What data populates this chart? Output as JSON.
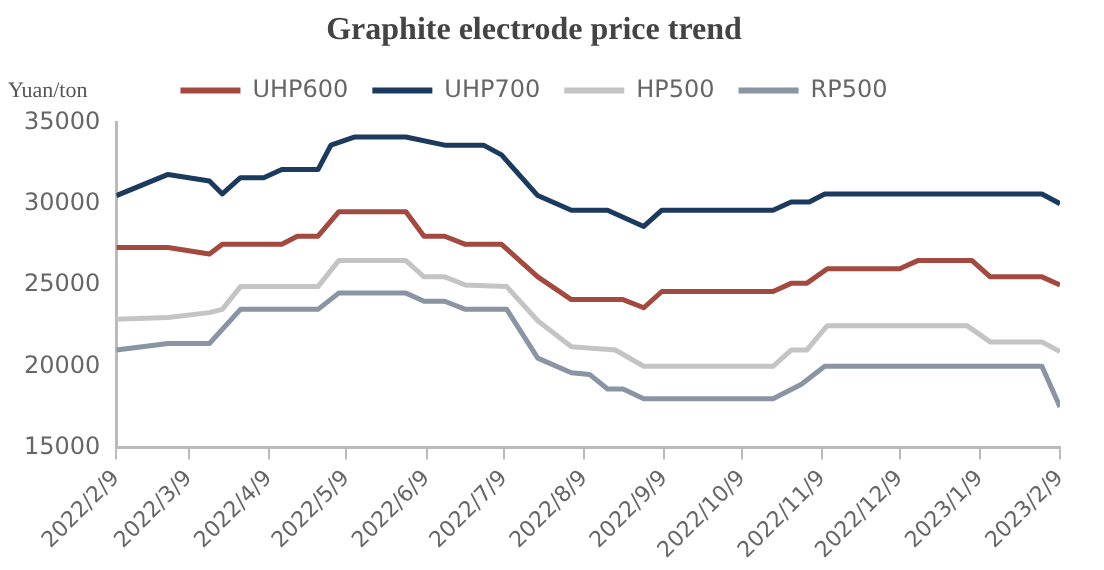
{
  "chart_data": {
    "type": "line",
    "title": "Graphite electrode price trend",
    "ylabel": "Yuan/ton",
    "legend": "top",
    "grid": false,
    "marker": "none",
    "xlim": [
      "2022-02-09",
      "2023-02-09"
    ],
    "xticks": [
      {
        "value": "2022-02-09",
        "label": "2022/2/9"
      },
      {
        "value": "2022-03-09",
        "label": "2022/3/9"
      },
      {
        "value": "2022-04-09",
        "label": "2022/4/9"
      },
      {
        "value": "2022-05-09",
        "label": "2022/5/9"
      },
      {
        "value": "2022-06-09",
        "label": "2022/6/9"
      },
      {
        "value": "2022-07-09",
        "label": "2022/7/9"
      },
      {
        "value": "2022-08-09",
        "label": "2022/8/9"
      },
      {
        "value": "2022-09-09",
        "label": "2022/9/9"
      },
      {
        "value": "2022-10-09",
        "label": "2022/10/9"
      },
      {
        "value": "2022-11-09",
        "label": "2022/11/9"
      },
      {
        "value": "2022-12-09",
        "label": "2022/12/9"
      },
      {
        "value": "2023-01-09",
        "label": "2023/1/9"
      },
      {
        "value": "2023-02-09",
        "label": "2023/2/9"
      }
    ],
    "ylim": [
      15000,
      35000
    ],
    "yticks": [
      15000,
      20000,
      25000,
      30000,
      35000
    ],
    "series": [
      {
        "name": "UHP600",
        "color": "#a34a40",
        "x": [
          "2022-02-09",
          "2022-03-01",
          "2022-03-17",
          "2022-03-22",
          "2022-04-14",
          "2022-04-20",
          "2022-04-28",
          "2022-05-06",
          "2022-06-01",
          "2022-06-08",
          "2022-06-16",
          "2022-06-24",
          "2022-07-08",
          "2022-07-22",
          "2022-08-04",
          "2022-08-24",
          "2022-09-01",
          "2022-09-08",
          "2022-10-21",
          "2022-10-28",
          "2022-11-03",
          "2022-11-11",
          "2022-12-09",
          "2022-12-16",
          "2023-01-06",
          "2023-01-13",
          "2023-02-02",
          "2023-02-09"
        ],
        "values": [
          27300,
          27300,
          26900,
          27500,
          27500,
          28000,
          28000,
          29500,
          29500,
          28000,
          28000,
          27500,
          27500,
          25500,
          24100,
          24100,
          23600,
          24600,
          24600,
          25100,
          25100,
          26000,
          26000,
          26500,
          26500,
          25500,
          25500,
          25000
        ]
      },
      {
        "name": "UHP700",
        "color": "#1c3a5e",
        "x": [
          "2022-02-09",
          "2022-03-01",
          "2022-03-17",
          "2022-03-22",
          "2022-03-29",
          "2022-04-07",
          "2022-04-14",
          "2022-04-28",
          "2022-05-03",
          "2022-05-12",
          "2022-06-01",
          "2022-06-16",
          "2022-07-01",
          "2022-07-08",
          "2022-07-22",
          "2022-08-04",
          "2022-08-18",
          "2022-09-01",
          "2022-09-08",
          "2022-10-21",
          "2022-10-28",
          "2022-11-04",
          "2022-11-10",
          "2023-02-02",
          "2023-02-09"
        ],
        "values": [
          30500,
          31800,
          31400,
          30600,
          31600,
          31600,
          32100,
          32100,
          33600,
          34100,
          34100,
          33600,
          33600,
          33000,
          30500,
          29600,
          29600,
          28600,
          29600,
          29600,
          30100,
          30100,
          30600,
          30600,
          30000
        ]
      },
      {
        "name": "HP500",
        "color": "#c4c4c4",
        "x": [
          "2022-02-09",
          "2022-03-01",
          "2022-03-17",
          "2022-03-22",
          "2022-03-29",
          "2022-04-28",
          "2022-05-06",
          "2022-06-01",
          "2022-06-08",
          "2022-06-16",
          "2022-06-24",
          "2022-07-10",
          "2022-07-22",
          "2022-08-04",
          "2022-08-21",
          "2022-09-01",
          "2022-10-21",
          "2022-10-28",
          "2022-11-03",
          "2022-11-11",
          "2023-01-04",
          "2023-01-13",
          "2023-02-02",
          "2023-02-09"
        ],
        "values": [
          22900,
          23000,
          23300,
          23500,
          24900,
          24900,
          26500,
          26500,
          25500,
          25500,
          25000,
          24900,
          22800,
          21200,
          21000,
          20000,
          20000,
          21000,
          21000,
          22500,
          22500,
          21500,
          21500,
          20900
        ]
      },
      {
        "name": "RP500",
        "color": "#8a94a3",
        "x": [
          "2022-02-09",
          "2022-03-01",
          "2022-03-17",
          "2022-03-29",
          "2022-04-28",
          "2022-05-06",
          "2022-06-01",
          "2022-06-08",
          "2022-06-16",
          "2022-06-24",
          "2022-07-10",
          "2022-07-22",
          "2022-08-04",
          "2022-08-11",
          "2022-08-18",
          "2022-08-24",
          "2022-09-01",
          "2022-10-21",
          "2022-11-01",
          "2022-11-10",
          "2023-02-02",
          "2023-02-09"
        ],
        "values": [
          21000,
          21400,
          21400,
          23500,
          23500,
          24500,
          24500,
          24000,
          24000,
          23500,
          23500,
          20500,
          19600,
          19500,
          18600,
          18600,
          18000,
          18000,
          18900,
          20000,
          20000,
          17500
        ]
      }
    ]
  }
}
